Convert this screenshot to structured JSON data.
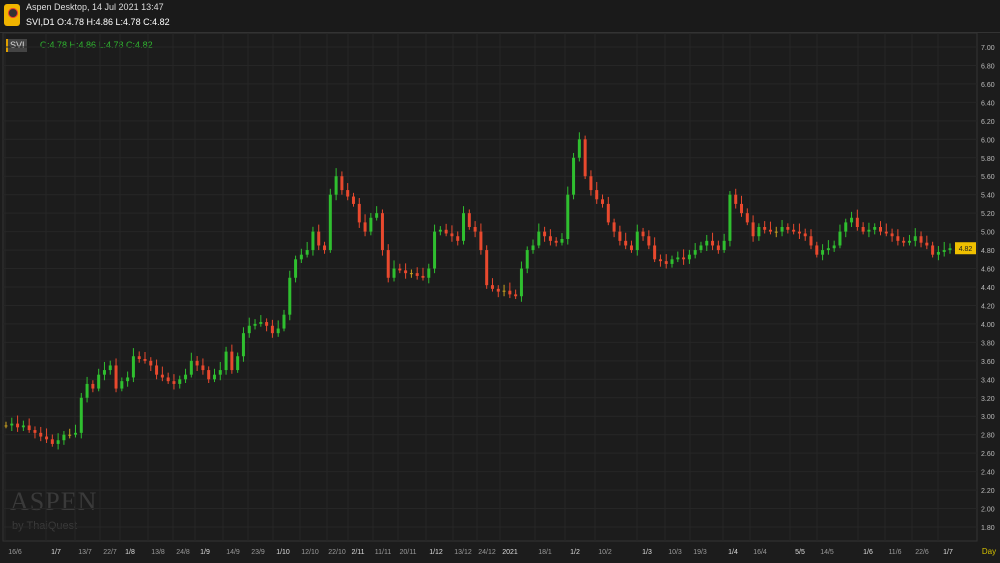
{
  "header": {
    "title": "Aspen Desktop, 14 Jul 2021 13:47",
    "symbol_line": "SVI,D1  O:4.78 H:4.86 L:4.78 C:4.82"
  },
  "legend": {
    "symbol": "SVI",
    "ohlc": "O:4.78 H:4.86 L:4.78 C:4.82"
  },
  "watermark": {
    "brand": "ASPEN",
    "sub": "by ThaiQuest"
  },
  "colors": {
    "up": "#2fbf2f",
    "down": "#e8492e",
    "background": "#1c1c1c",
    "grid": "#262626",
    "last_price_bg": "#f0c000"
  },
  "chart_data": {
    "type": "candlestick",
    "timeframe_label": "Day",
    "ylim": [
      1.8,
      7.0
    ],
    "yticks": [
      "7.00",
      "6.80",
      "6.60",
      "6.40",
      "6.20",
      "6.00",
      "5.80",
      "5.60",
      "5.40",
      "5.20",
      "5.00",
      "4.80",
      "4.60",
      "4.40",
      "4.20",
      "4.00",
      "3.80",
      "3.60",
      "3.40",
      "3.20",
      "3.00",
      "2.80",
      "2.60",
      "2.40",
      "2.20",
      "2.00",
      "1.80"
    ],
    "last_price": "4.82",
    "xticks": [
      "16/6",
      "1/7",
      "13/7",
      "22/7",
      "1/8",
      "13/8",
      "24/8",
      "1/9",
      "14/9",
      "23/9",
      "1/10",
      "12/10",
      "22/10",
      "2/11",
      "11/11",
      "20/11",
      "1/12",
      "13/12",
      "24/12",
      "2021",
      "18/1",
      "1/2",
      "10/2",
      "1/3",
      "10/3",
      "19/3",
      "1/4",
      "16/4",
      "5/5",
      "14/5",
      "1/6",
      "11/6",
      "22/6",
      "1/7"
    ],
    "closes": [
      2.9,
      2.92,
      2.88,
      2.9,
      2.85,
      2.82,
      2.78,
      2.75,
      2.7,
      2.74,
      2.8,
      2.8,
      2.82,
      3.2,
      3.35,
      3.3,
      3.45,
      3.5,
      3.55,
      3.3,
      3.38,
      3.42,
      3.65,
      3.62,
      3.6,
      3.55,
      3.45,
      3.42,
      3.38,
      3.35,
      3.4,
      3.45,
      3.6,
      3.55,
      3.5,
      3.4,
      3.45,
      3.5,
      3.7,
      3.5,
      3.65,
      3.9,
      3.98,
      4.0,
      4.02,
      3.98,
      3.9,
      3.95,
      4.1,
      4.5,
      4.7,
      4.75,
      4.8,
      5.0,
      4.85,
      4.8,
      5.4,
      5.6,
      5.45,
      5.38,
      5.3,
      5.1,
      5.0,
      5.15,
      5.2,
      4.8,
      4.5,
      4.6,
      4.58,
      4.55,
      4.55,
      4.52,
      4.5,
      4.6,
      5.0,
      5.02,
      4.98,
      4.95,
      4.9,
      5.2,
      5.05,
      5.0,
      4.8,
      4.42,
      4.38,
      4.35,
      4.36,
      4.32,
      4.3,
      4.6,
      4.8,
      4.85,
      5.0,
      4.95,
      4.9,
      4.88,
      4.92,
      5.4,
      5.8,
      6.0,
      5.6,
      5.45,
      5.35,
      5.3,
      5.1,
      5.0,
      4.9,
      4.85,
      4.8,
      5.0,
      4.95,
      4.85,
      4.7,
      4.68,
      4.65,
      4.7,
      4.72,
      4.7,
      4.75,
      4.8,
      4.85,
      4.9,
      4.85,
      4.8,
      4.9,
      5.4,
      5.3,
      5.2,
      5.1,
      4.95,
      5.05,
      5.02,
      5.0,
      5.0,
      5.05,
      5.02,
      5.0,
      4.98,
      4.95,
      4.85,
      4.75,
      4.8,
      4.82,
      4.85,
      5.0,
      5.1,
      5.15,
      5.05,
      5.0,
      5.02,
      5.05,
      5.0,
      4.98,
      4.95,
      4.9,
      4.88,
      4.9,
      4.95,
      4.88,
      4.85,
      4.75,
      4.78,
      4.8,
      4.82
    ]
  }
}
